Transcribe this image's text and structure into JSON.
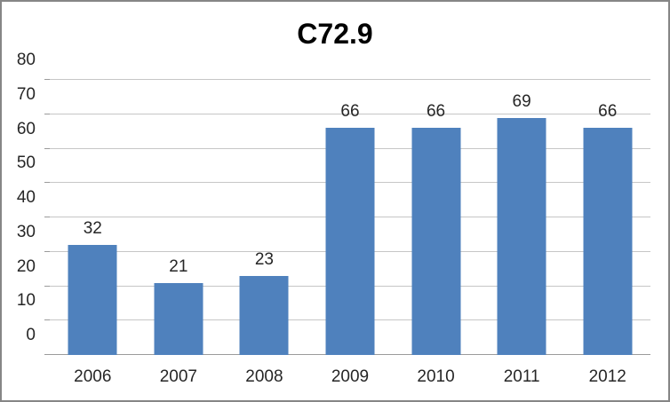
{
  "window": {
    "background_color": "#FFFFFF",
    "border_color": "#868686"
  },
  "chart_data": {
    "type": "bar",
    "title": "C72.9",
    "categories": [
      "2006",
      "2007",
      "2008",
      "2009",
      "2010",
      "2011",
      "2012"
    ],
    "values": [
      32,
      21,
      23,
      66,
      66,
      69,
      66
    ],
    "data_labels": [
      "32",
      "21",
      "23",
      "66",
      "66",
      "69",
      "66"
    ],
    "xlabel": "",
    "ylabel": "",
    "ylim": [
      0,
      80
    ],
    "yticks": [
      0,
      10,
      20,
      30,
      40,
      50,
      60,
      70,
      80
    ],
    "grid": true,
    "legend_position": "none",
    "bar_color": "#4F81BD",
    "gridline_color": "#C6C6C6",
    "axis_line_color": "#9B9B9B",
    "label_color": "#262626",
    "title_color": "#000000"
  }
}
